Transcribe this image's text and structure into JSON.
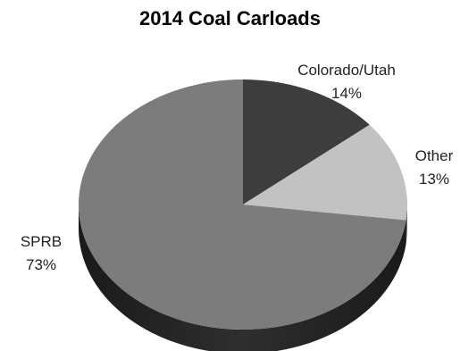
{
  "chart_data": {
    "type": "pie",
    "title": "2014 Coal Carloads",
    "slices": [
      {
        "label": "Colorado/Utah",
        "value": 14,
        "value_label": "14%",
        "color": "#3d3d3d",
        "side_color": "#262626"
      },
      {
        "label": "Other",
        "value": 13,
        "value_label": "13%",
        "color": "#c2c2c2",
        "side_color": "#8e8e8e"
      },
      {
        "label": "SPRB",
        "value": 73,
        "value_label": "73%",
        "color": "#7c7c7c",
        "side_color": "#2e2e2e"
      }
    ],
    "style": "3d",
    "legend": "none"
  }
}
